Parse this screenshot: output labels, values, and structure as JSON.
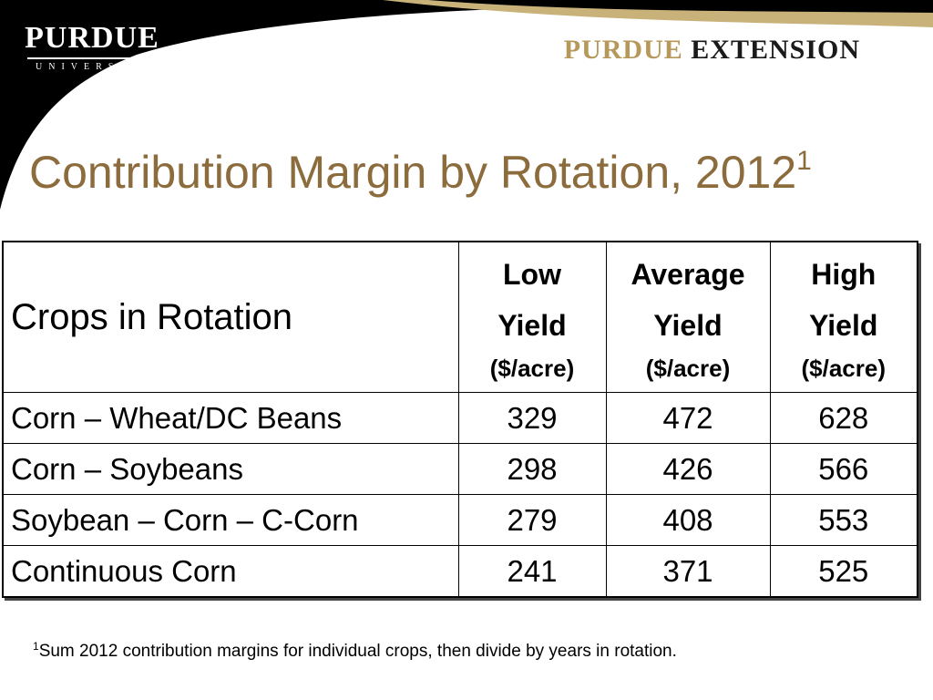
{
  "header": {
    "logo_left_main": "PURDUE",
    "logo_left_sub": "UNIVERSITY",
    "logo_right_part1": "PURDUE",
    "logo_right_part2": "EXTENSION"
  },
  "title": {
    "text": "Contribution Margin by Rotation, 2012",
    "footnote_marker": "1"
  },
  "table": {
    "row_header_label": "Crops in Rotation",
    "columns": [
      {
        "line1": "Low",
        "line2": "Yield",
        "unit": "($/acre)"
      },
      {
        "line1": "Average",
        "line2": "Yield",
        "unit": "($/acre)"
      },
      {
        "line1": "High",
        "line2": "Yield",
        "unit": "($/acre)"
      }
    ],
    "rows": [
      {
        "label": "Corn – Wheat/DC Beans",
        "values": [
          "329",
          "472",
          "628"
        ]
      },
      {
        "label": "Corn – Soybeans",
        "values": [
          "298",
          "426",
          "566"
        ]
      },
      {
        "label": "Soybean – Corn – C-Corn",
        "values": [
          "279",
          "408",
          "553"
        ]
      },
      {
        "label": "Continuous Corn",
        "values": [
          "241",
          "371",
          "525"
        ]
      }
    ]
  },
  "footnote": {
    "marker": "1",
    "text": "Sum 2012 contribution margins for individual crops, then divide by years in rotation."
  },
  "colors": {
    "title": "#8c6c3c",
    "gold": "#b5985a",
    "black": "#000000"
  }
}
